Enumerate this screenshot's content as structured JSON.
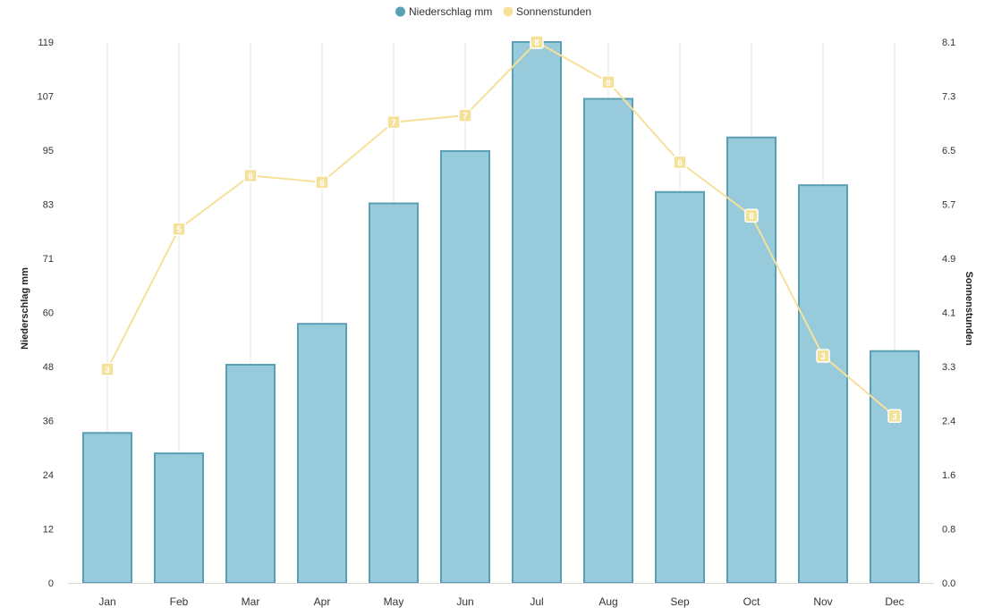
{
  "chart_data": {
    "type": "bar",
    "categories": [
      "Jan",
      "Feb",
      "Mar",
      "Apr",
      "May",
      "Jun",
      "Jul",
      "Aug",
      "Sep",
      "Oct",
      "Nov",
      "Dec"
    ],
    "legend": {
      "placement": "top-center"
    },
    "y_left": {
      "label": "Niederschlag mm",
      "ticks": [
        "0",
        "12",
        "24",
        "36",
        "48",
        "60",
        "71",
        "83",
        "95",
        "107",
        "119"
      ],
      "range": [
        0,
        119
      ]
    },
    "y_right": {
      "label": "Sonnenstunden",
      "ticks": [
        "0.0",
        "0.8",
        "1.6",
        "2.4",
        "3.3",
        "4.1",
        "4.9",
        "5.7",
        "6.5",
        "7.3",
        "8.1"
      ],
      "range": [
        0,
        8.1
      ]
    },
    "grid": {
      "vertical": true,
      "horizontal": false
    },
    "series": [
      {
        "name": "Niederschlag mm",
        "type": "bar",
        "axis": "left",
        "color": "#97cbdb",
        "stroke": "#5a9fb3",
        "values": [
          33,
          28.5,
          48,
          57,
          83.5,
          95,
          119,
          106.5,
          86,
          98,
          87.5,
          51
        ]
      },
      {
        "name": "Sonnenstunden",
        "type": "line",
        "axis": "right",
        "color": "#f5e19a",
        "values": [
          3.2,
          5.3,
          6.1,
          6.0,
          6.9,
          7.0,
          8.1,
          7.5,
          6.3,
          5.5,
          3.4,
          2.5
        ],
        "labels": [
          "3",
          "5",
          "6",
          "6",
          "7",
          "7",
          "8",
          "8",
          "6",
          "6",
          "3",
          "3"
        ]
      }
    ]
  }
}
